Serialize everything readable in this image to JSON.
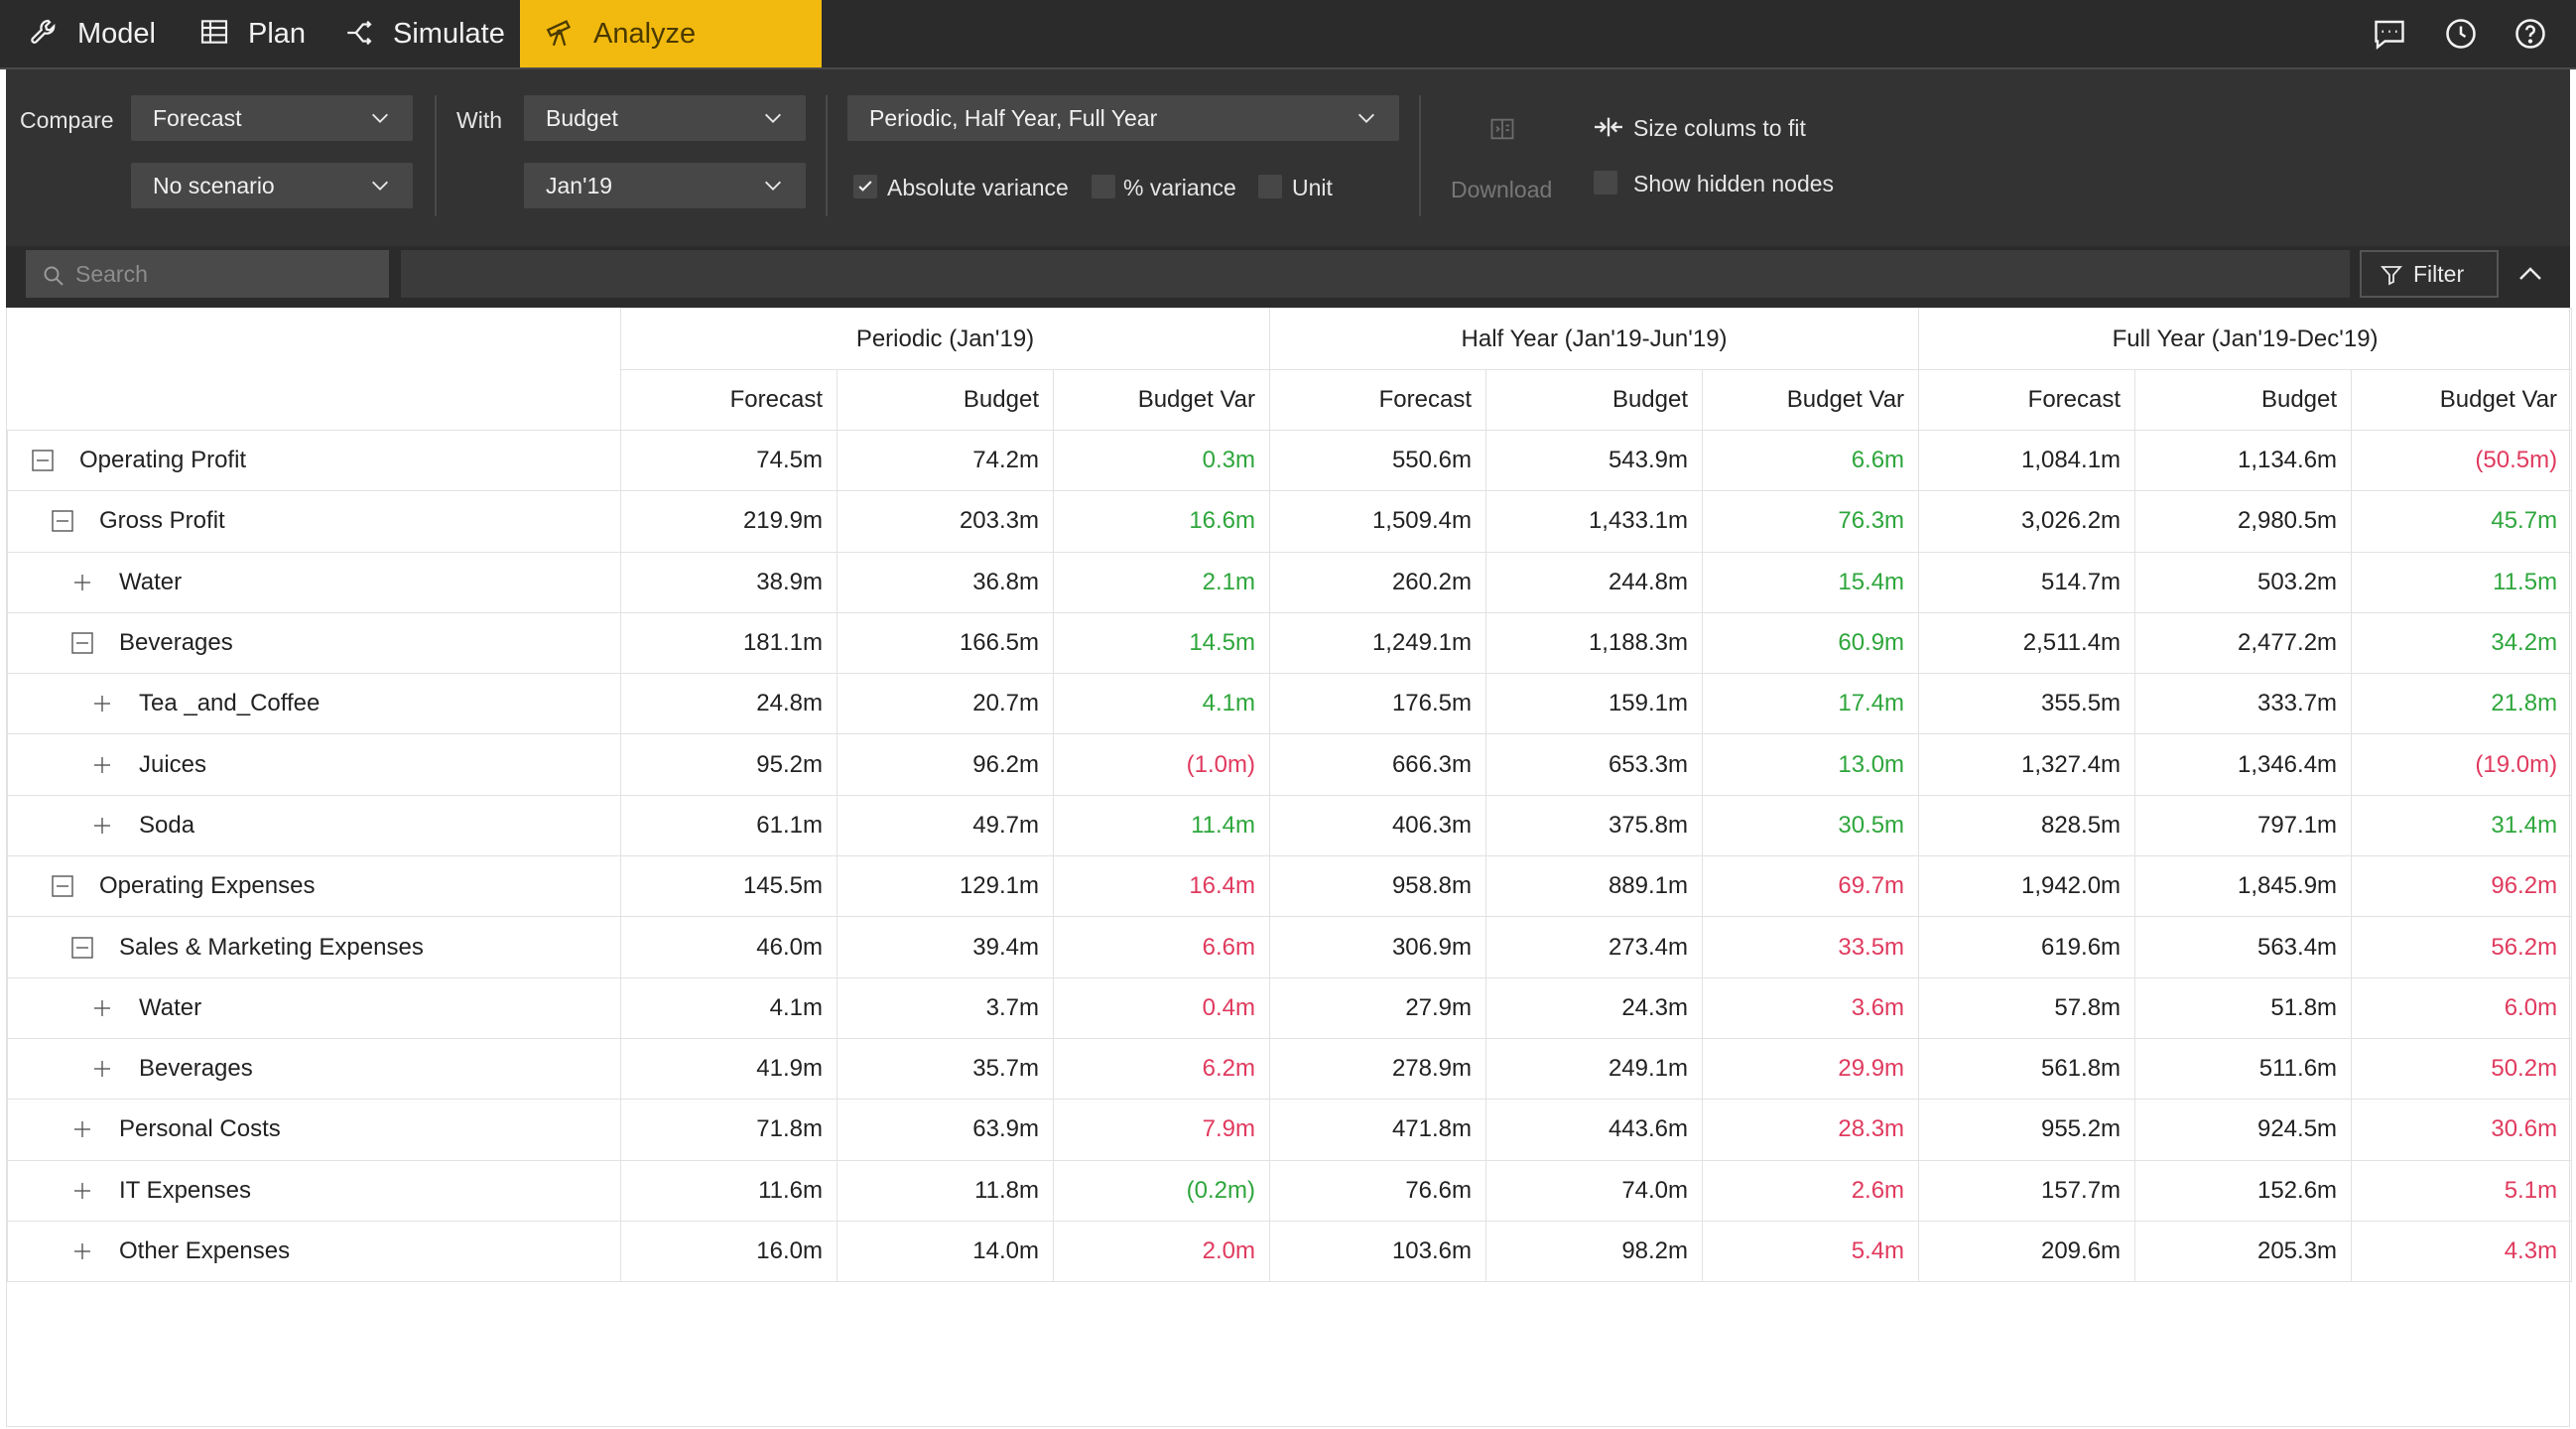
{
  "nav": {
    "tabs": [
      {
        "label": "Model",
        "icon": "wrench-icon"
      },
      {
        "label": "Plan",
        "icon": "table-icon"
      },
      {
        "label": "Simulate",
        "icon": "branch-icon"
      },
      {
        "label": "Analyze",
        "icon": "telescope-icon",
        "active": true
      }
    ],
    "right_icons": [
      "comment-icon",
      "history-icon",
      "help-icon"
    ]
  },
  "toolbar": {
    "compare_label": "Compare",
    "compare_value": "Forecast",
    "scenario_value": "No scenario",
    "with_label": "With",
    "with_value": "Budget",
    "period_value": "Jan'19",
    "columns_value": "Periodic, Half Year, Full Year",
    "absolute_variance": {
      "label": "Absolute variance",
      "checked": true
    },
    "pct_variance": {
      "label": "% variance",
      "checked": false
    },
    "unit": {
      "label": "Unit",
      "checked": false
    },
    "download_label": "Download",
    "size_columns_label": "Size colums to fit",
    "show_hidden_nodes": {
      "label": "Show hidden nodes",
      "checked": false
    }
  },
  "search": {
    "placeholder": "Search",
    "filter_label": "Filter"
  },
  "colors": {
    "accent": "#f2b90f",
    "positive": "#2ea63c",
    "negative": "#e03a5e",
    "dark_bg": "#2b2b2b",
    "toolbar_bg": "#333333"
  },
  "grid": {
    "groups": [
      "Periodic (Jan'19)",
      "Half Year (Jan'19-Jun'19)",
      "Full Year (Jan'19-Dec'19)"
    ],
    "columns": [
      "Forecast",
      "Budget",
      "Budget Var"
    ],
    "rows": [
      {
        "name": "Operating Profit",
        "level": 0,
        "expanded": true,
        "values": [
          "74.5m",
          "74.2m",
          "0.3m",
          "550.6m",
          "543.9m",
          "6.6m",
          "1,084.1m",
          "1,134.6m",
          "(50.5m)"
        ],
        "var_status": [
          "pos",
          "pos",
          "neg"
        ]
      },
      {
        "name": "Gross Profit",
        "level": 1,
        "expanded": true,
        "values": [
          "219.9m",
          "203.3m",
          "16.6m",
          "1,509.4m",
          "1,433.1m",
          "76.3m",
          "3,026.2m",
          "2,980.5m",
          "45.7m"
        ],
        "var_status": [
          "pos",
          "pos",
          "pos"
        ]
      },
      {
        "name": "Water",
        "level": 2,
        "expanded": false,
        "values": [
          "38.9m",
          "36.8m",
          "2.1m",
          "260.2m",
          "244.8m",
          "15.4m",
          "514.7m",
          "503.2m",
          "11.5m"
        ],
        "var_status": [
          "pos",
          "pos",
          "pos"
        ]
      },
      {
        "name": "Beverages",
        "level": 2,
        "expanded": true,
        "values": [
          "181.1m",
          "166.5m",
          "14.5m",
          "1,249.1m",
          "1,188.3m",
          "60.9m",
          "2,511.4m",
          "2,477.2m",
          "34.2m"
        ],
        "var_status": [
          "pos",
          "pos",
          "pos"
        ]
      },
      {
        "name": "Tea _and_Coffee",
        "level": 3,
        "expanded": false,
        "values": [
          "24.8m",
          "20.7m",
          "4.1m",
          "176.5m",
          "159.1m",
          "17.4m",
          "355.5m",
          "333.7m",
          "21.8m"
        ],
        "var_status": [
          "pos",
          "pos",
          "pos"
        ]
      },
      {
        "name": "Juices",
        "level": 3,
        "expanded": false,
        "values": [
          "95.2m",
          "96.2m",
          "(1.0m)",
          "666.3m",
          "653.3m",
          "13.0m",
          "1,327.4m",
          "1,346.4m",
          "(19.0m)"
        ],
        "var_status": [
          "neg",
          "pos",
          "neg"
        ]
      },
      {
        "name": "Soda",
        "level": 3,
        "expanded": false,
        "values": [
          "61.1m",
          "49.7m",
          "11.4m",
          "406.3m",
          "375.8m",
          "30.5m",
          "828.5m",
          "797.1m",
          "31.4m"
        ],
        "var_status": [
          "pos",
          "pos",
          "pos"
        ]
      },
      {
        "name": "Operating Expenses",
        "level": 1,
        "expanded": true,
        "values": [
          "145.5m",
          "129.1m",
          "16.4m",
          "958.8m",
          "889.1m",
          "69.7m",
          "1,942.0m",
          "1,845.9m",
          "96.2m"
        ],
        "var_status": [
          "neg",
          "neg",
          "neg"
        ]
      },
      {
        "name": "Sales & Marketing Expenses",
        "level": 2,
        "expanded": true,
        "values": [
          "46.0m",
          "39.4m",
          "6.6m",
          "306.9m",
          "273.4m",
          "33.5m",
          "619.6m",
          "563.4m",
          "56.2m"
        ],
        "var_status": [
          "neg",
          "neg",
          "neg"
        ]
      },
      {
        "name": "Water",
        "level": 3,
        "expanded": false,
        "values": [
          "4.1m",
          "3.7m",
          "0.4m",
          "27.9m",
          "24.3m",
          "3.6m",
          "57.8m",
          "51.8m",
          "6.0m"
        ],
        "var_status": [
          "neg",
          "neg",
          "neg"
        ]
      },
      {
        "name": "Beverages",
        "level": 3,
        "expanded": false,
        "values": [
          "41.9m",
          "35.7m",
          "6.2m",
          "278.9m",
          "249.1m",
          "29.9m",
          "561.8m",
          "511.6m",
          "50.2m"
        ],
        "var_status": [
          "neg",
          "neg",
          "neg"
        ]
      },
      {
        "name": "Personal Costs",
        "level": 2,
        "expanded": false,
        "values": [
          "71.8m",
          "63.9m",
          "7.9m",
          "471.8m",
          "443.6m",
          "28.3m",
          "955.2m",
          "924.5m",
          "30.6m"
        ],
        "var_status": [
          "neg",
          "neg",
          "neg"
        ]
      },
      {
        "name": "IT Expenses",
        "level": 2,
        "expanded": false,
        "values": [
          "11.6m",
          "11.8m",
          "(0.2m)",
          "76.6m",
          "74.0m",
          "2.6m",
          "157.7m",
          "152.6m",
          "5.1m"
        ],
        "var_status": [
          "pos",
          "neg",
          "neg"
        ]
      },
      {
        "name": "Other Expenses",
        "level": 2,
        "expanded": false,
        "values": [
          "16.0m",
          "14.0m",
          "2.0m",
          "103.6m",
          "98.2m",
          "5.4m",
          "209.6m",
          "205.3m",
          "4.3m"
        ],
        "var_status": [
          "neg",
          "neg",
          "neg"
        ]
      }
    ]
  }
}
